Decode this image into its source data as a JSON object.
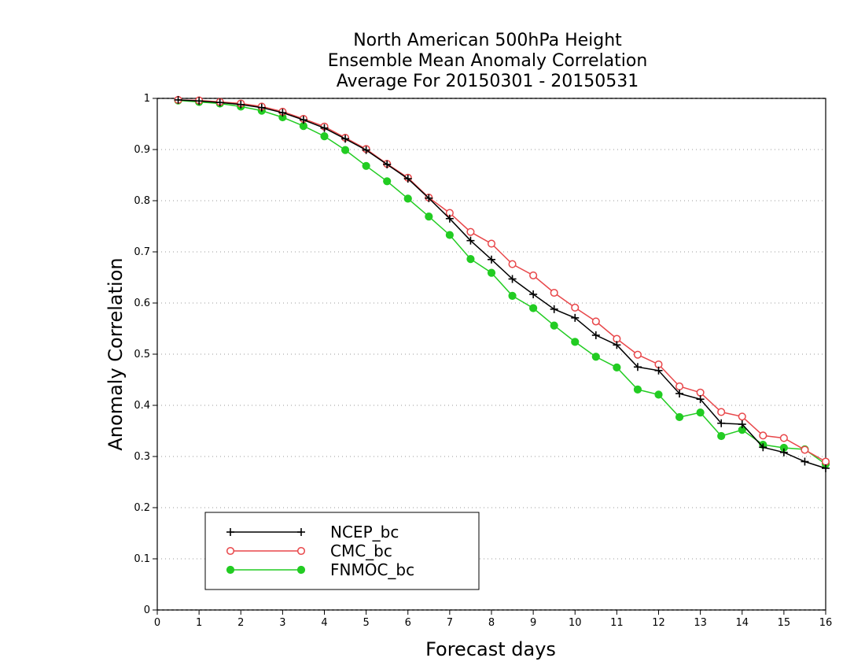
{
  "chart_data": {
    "type": "line",
    "title": [
      "North American 500hPa Height",
      "Ensemble Mean Anomaly Correlation",
      "Average For 20150301 - 20150531"
    ],
    "xlabel": "Forecast days",
    "ylabel": "Anomaly Correlation",
    "xlim": [
      0,
      16
    ],
    "ylim": [
      0,
      1
    ],
    "xticks": [
      0,
      1,
      2,
      3,
      4,
      5,
      6,
      7,
      8,
      9,
      10,
      11,
      12,
      13,
      14,
      15,
      16
    ],
    "yticks": [
      0,
      0.1,
      0.2,
      0.3,
      0.4,
      0.5,
      0.6,
      0.7,
      0.8,
      0.9,
      1
    ],
    "ytick_labels": [
      "0",
      "0.1",
      "0.2",
      "0.3",
      "0.4",
      "0.5",
      "0.6",
      "0.7",
      "0.8",
      "0.9",
      "1"
    ],
    "grid": "horizontal dotted",
    "legend_position": "bottom-left",
    "x": [
      0.5,
      1.0,
      1.5,
      2.0,
      2.5,
      3.0,
      3.5,
      4.0,
      4.5,
      5.0,
      5.5,
      6.0,
      6.5,
      7.0,
      7.5,
      8.0,
      8.5,
      9.0,
      9.5,
      10.0,
      10.5,
      11.0,
      11.5,
      12.0,
      12.5,
      13.0,
      13.5,
      14.0,
      14.5,
      15.0,
      15.5,
      16.0
    ],
    "series": [
      {
        "name": "NCEP_bc",
        "color": "#000000",
        "marker": "plus",
        "values": [
          0.997,
          0.995,
          0.992,
          0.988,
          0.982,
          0.972,
          0.958,
          0.942,
          0.921,
          0.899,
          0.871,
          0.843,
          0.805,
          0.765,
          0.722,
          0.685,
          0.647,
          0.617,
          0.588,
          0.571,
          0.537,
          0.518,
          0.475,
          0.468,
          0.423,
          0.412,
          0.365,
          0.363,
          0.318,
          0.308,
          0.29,
          0.277
        ]
      },
      {
        "name": "CMC_bc",
        "color": "#e8474a",
        "marker": "open-circle",
        "values": [
          0.997,
          0.996,
          0.993,
          0.99,
          0.984,
          0.974,
          0.96,
          0.945,
          0.923,
          0.901,
          0.872,
          0.845,
          0.806,
          0.776,
          0.739,
          0.716,
          0.676,
          0.654,
          0.62,
          0.591,
          0.564,
          0.53,
          0.499,
          0.48,
          0.437,
          0.425,
          0.387,
          0.378,
          0.341,
          0.336,
          0.313,
          0.29
        ]
      },
      {
        "name": "FNMOC_bc",
        "color": "#22cc22",
        "marker": "filled-circle",
        "values": [
          0.996,
          0.993,
          0.99,
          0.984,
          0.976,
          0.963,
          0.946,
          0.926,
          0.899,
          0.868,
          0.838,
          0.804,
          0.769,
          0.733,
          0.686,
          0.659,
          0.614,
          0.59,
          0.556,
          0.524,
          0.495,
          0.474,
          0.431,
          0.421,
          0.377,
          0.386,
          0.34,
          0.352,
          0.323,
          0.317,
          0.314,
          0.285
        ]
      }
    ]
  }
}
